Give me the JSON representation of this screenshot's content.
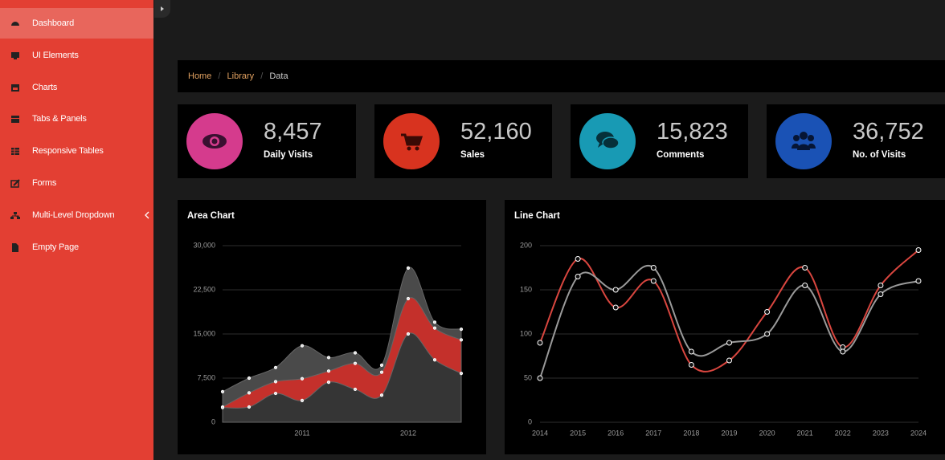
{
  "sidebar": {
    "items": [
      "Dashboard",
      "UI Elements",
      "Charts",
      "Tabs & Panels",
      "Responsive Tables",
      "Forms",
      "Multi-Level Dropdown",
      "Empty Page"
    ]
  },
  "breadcrumb": [
    "Home",
    "Library",
    "Data"
  ],
  "stats": [
    {
      "value": "8,457",
      "label": "Daily Visits",
      "color": "#d53b8d"
    },
    {
      "value": "52,160",
      "label": "Sales",
      "color": "#d8331f"
    },
    {
      "value": "15,823",
      "label": "Comments",
      "color": "#189ab4"
    },
    {
      "value": "36,752",
      "label": "No. of Visits",
      "color": "#1a52b5"
    }
  ],
  "chart_data": [
    {
      "type": "area",
      "title": "Area Chart",
      "categories": [
        null,
        null,
        null,
        "2011",
        null,
        null,
        null,
        "2012",
        null,
        null
      ],
      "ylim": [
        0,
        30000
      ],
      "yticks": [
        0,
        {
          "value": 7500,
          "label": "7,500"
        },
        {
          "value": 15000,
          "label": "15,000"
        },
        {
          "value": 22500,
          "label": "22,500"
        },
        {
          "value": 30000,
          "label": "30,000"
        }
      ],
      "grid": true,
      "series": [
        {
          "color": "#4a4a4a",
          "values": [
            5200,
            7500,
            9300,
            13000,
            11000,
            11800,
            9700,
            26200,
            17000,
            15800
          ]
        },
        {
          "color": "#c4302b",
          "values": [
            2600,
            5000,
            6900,
            7400,
            8700,
            10000,
            8500,
            21000,
            16000,
            14000
          ]
        },
        {
          "color": "#353535",
          "values": [
            2500,
            2600,
            4900,
            3700,
            6800,
            5600,
            4600,
            15000,
            10600,
            8300
          ]
        }
      ]
    },
    {
      "type": "line",
      "title": "Line Chart",
      "categories": [
        "2014",
        "2015",
        "2016",
        "2017",
        "2018",
        "2019",
        "2020",
        "2021",
        "2022",
        "2023",
        "2024"
      ],
      "ylim": [
        0,
        200
      ],
      "yticks": [
        0,
        50,
        100,
        150,
        200
      ],
      "grid": true,
      "series": [
        {
          "color": "#d9463f",
          "values": [
            90,
            185,
            130,
            160,
            65,
            70,
            125,
            175,
            85,
            155,
            195
          ]
        },
        {
          "color": "#9a9a9a",
          "values": [
            50,
            165,
            150,
            175,
            80,
            90,
            100,
            155,
            80,
            145,
            160
          ]
        }
      ]
    }
  ]
}
